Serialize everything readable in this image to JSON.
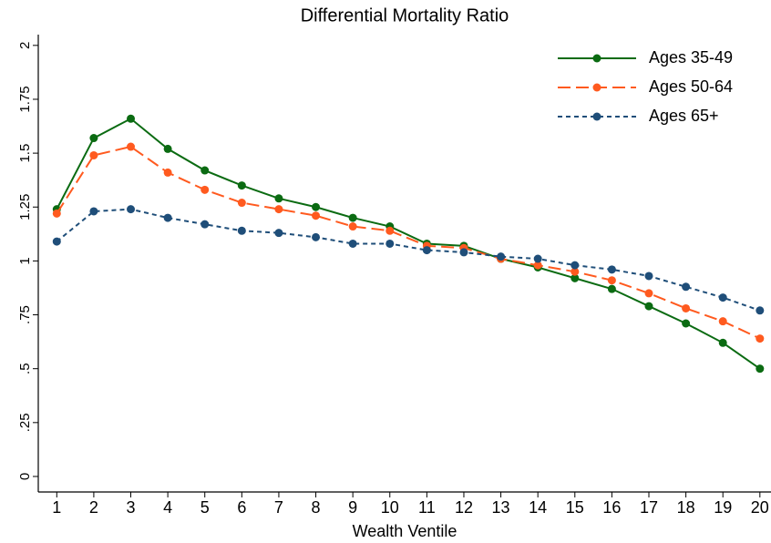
{
  "chart_data": {
    "type": "line",
    "title": "Differential Mortality Ratio",
    "x_label": "Wealth Ventile",
    "x": [
      1,
      2,
      3,
      4,
      5,
      6,
      7,
      8,
      9,
      10,
      11,
      12,
      13,
      14,
      15,
      16,
      17,
      18,
      19,
      20
    ],
    "xlim": [
      0.5,
      20.3
    ],
    "xticks": [
      1,
      2,
      3,
      4,
      5,
      6,
      7,
      8,
      9,
      10,
      11,
      12,
      13,
      14,
      15,
      16,
      17,
      18,
      19,
      20
    ],
    "ylim": [
      -0.072,
      2.05
    ],
    "yticks": [
      0,
      {
        "value": 0.25,
        "label": ".25"
      },
      {
        "value": 0.5,
        "label": ".5"
      },
      {
        "value": 0.75,
        "label": ".75"
      },
      1,
      1.25,
      1.5,
      1.75,
      2
    ],
    "legend": "top-right",
    "series": [
      {
        "name": "Ages 35-49",
        "color": "#0b6b12",
        "dash": "solid",
        "values": [
          1.24,
          1.57,
          1.66,
          1.52,
          1.42,
          1.35,
          1.29,
          1.25,
          1.2,
          1.16,
          1.08,
          1.07,
          1.01,
          0.97,
          0.92,
          0.87,
          0.79,
          0.71,
          0.62,
          0.5
        ]
      },
      {
        "name": "Ages 50-64",
        "color": "#ff5a1f",
        "dash": "long",
        "values": [
          1.22,
          1.49,
          1.53,
          1.41,
          1.33,
          1.27,
          1.24,
          1.21,
          1.16,
          1.14,
          1.07,
          1.06,
          1.01,
          0.98,
          0.95,
          0.91,
          0.85,
          0.78,
          0.72,
          0.64
        ]
      },
      {
        "name": "Ages 65+",
        "color": "#1f4e79",
        "dash": "short",
        "values": [
          1.09,
          1.23,
          1.24,
          1.2,
          1.17,
          1.14,
          1.13,
          1.11,
          1.08,
          1.08,
          1.05,
          1.04,
          1.02,
          1.01,
          0.98,
          0.96,
          0.93,
          0.88,
          0.83,
          0.77
        ]
      }
    ]
  }
}
